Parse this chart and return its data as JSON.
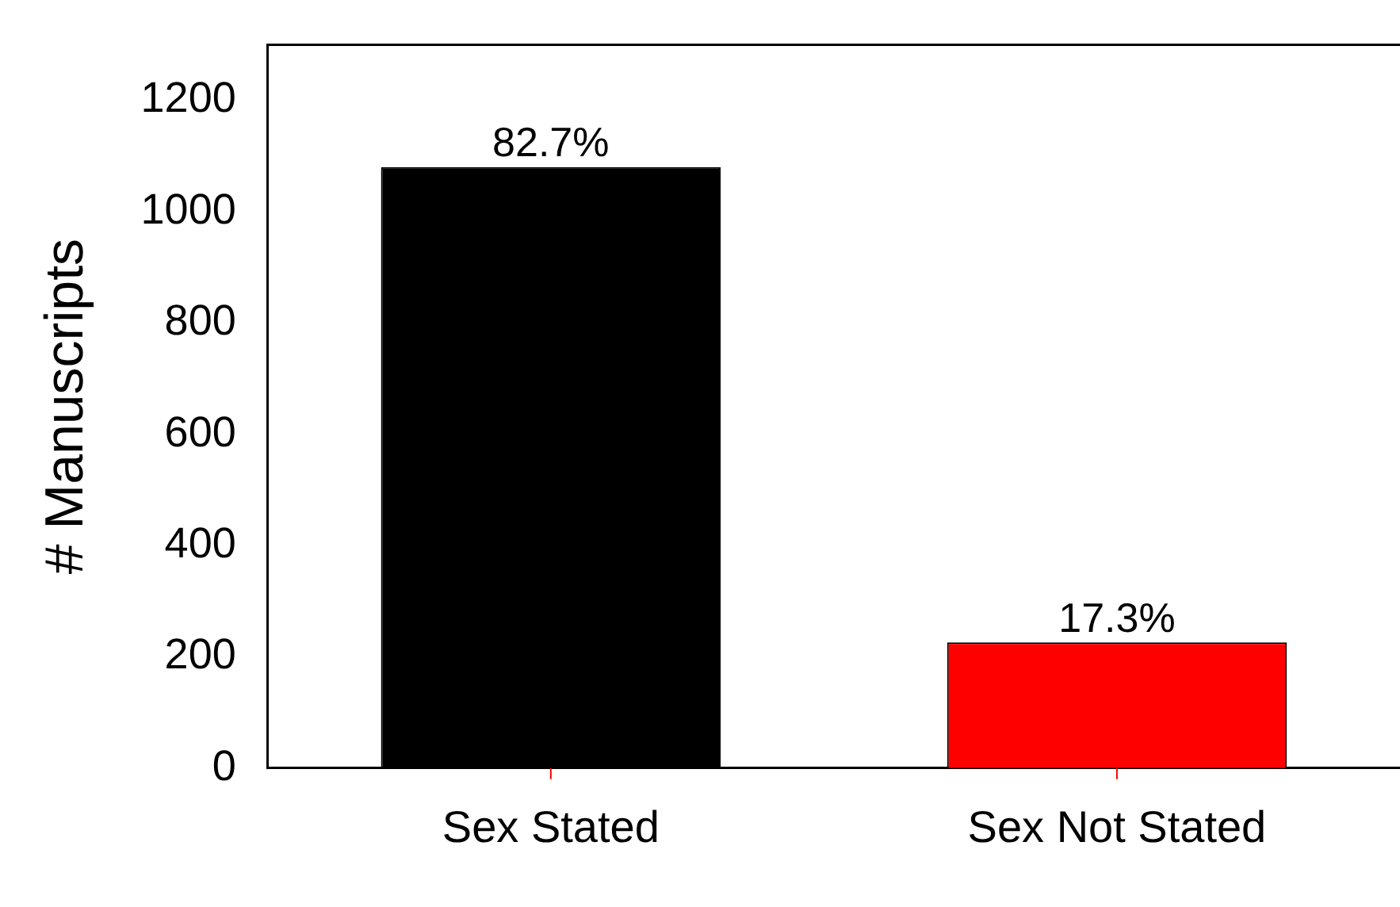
{
  "chart_data": {
    "type": "bar",
    "ylabel": "# Manuscripts",
    "categories": [
      "Sex Stated",
      "Sex Not Stated"
    ],
    "values": [
      1080,
      226
    ],
    "colors": [
      "#000000",
      "#ff0000"
    ],
    "annotations": [
      {
        "text": "82.7%",
        "x": "Sex Stated",
        "y": 1080
      },
      {
        "text": "17.3%",
        "x": "Sex Not Stated",
        "y": 226
      }
    ],
    "ylim": [
      0,
      1300
    ],
    "yticks": [
      0,
      200,
      400,
      600,
      800,
      1000,
      1200
    ],
    "grid": false,
    "legend": false
  }
}
